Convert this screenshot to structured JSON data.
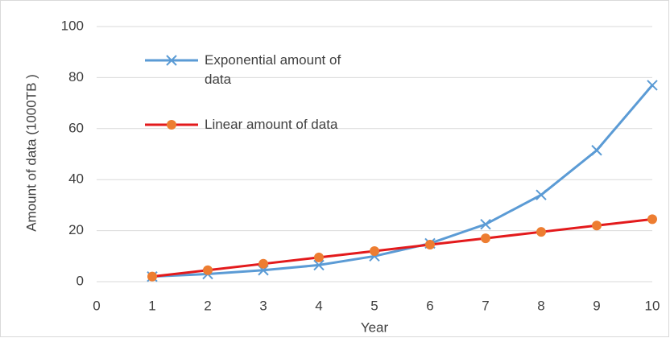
{
  "chart_data": {
    "type": "line",
    "x_label": "Year",
    "y_label": "Amount of data (1000TB )",
    "x": [
      1,
      2,
      3,
      4,
      5,
      6,
      7,
      8,
      9,
      10
    ],
    "series": [
      {
        "name": "Exponential amount of data",
        "color": "#5b9bd5",
        "marker": "x",
        "values": [
          2,
          3,
          4.5,
          6.5,
          10,
          15,
          22.5,
          34,
          51.5,
          77
        ]
      },
      {
        "name": "Linear amount of data",
        "color": "#e31a1c",
        "marker_color": "#ed7d31",
        "marker": "circle",
        "values": [
          2,
          4.5,
          7,
          9.5,
          12,
          14.5,
          17,
          19.5,
          22,
          24.5
        ]
      }
    ],
    "xlim": [
      0,
      10
    ],
    "xticks": [
      0,
      1,
      2,
      3,
      4,
      5,
      6,
      7,
      8,
      9,
      10
    ],
    "ylim": [
      0,
      100
    ],
    "yticks": [
      0,
      20,
      40,
      60,
      80,
      100
    ],
    "grid": true
  }
}
